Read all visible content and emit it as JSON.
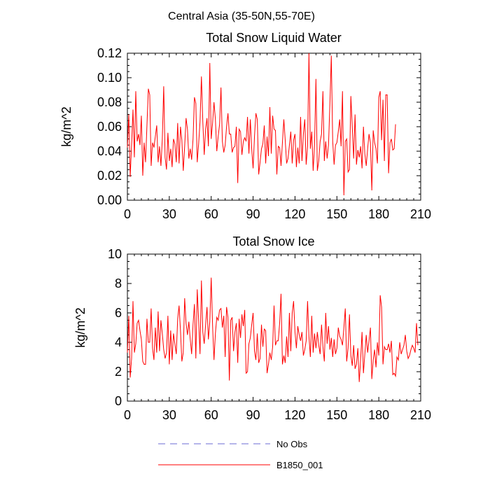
{
  "figure": {
    "suptitle": "Central Asia (35-50N,55-70E)"
  },
  "chart_data": [
    {
      "type": "line",
      "title": "Total Snow Liquid Water",
      "xlabel": "",
      "ylabel": "kg/m^2",
      "xlim": [
        0,
        210
      ],
      "ylim": [
        0,
        0.12
      ],
      "xticks": [
        0,
        30,
        60,
        90,
        120,
        150,
        180,
        210
      ],
      "yticks": [
        0,
        0.02,
        0.04,
        0.06,
        0.08,
        0.1,
        0.12
      ],
      "ytick_labels": [
        "0.00",
        "0.02",
        "0.04",
        "0.06",
        "0.08",
        "0.10",
        "0.12"
      ],
      "grid": false,
      "series": [
        {
          "name": "B1850_001",
          "color": "#ff0000",
          "x_start": 0,
          "x_step": 1,
          "values": [
            0.043,
            0.07,
            0.019,
            0.045,
            0.074,
            0.035,
            0.089,
            0.048,
            0.054,
            0.045,
            0.069,
            0.02,
            0.047,
            0.031,
            0.061,
            0.091,
            0.086,
            0.028,
            0.047,
            0.043,
            0.052,
            0.061,
            0.031,
            0.044,
            0.028,
            0.05,
            0.093,
            0.035,
            0.025,
            0.055,
            0.032,
            0.042,
            0.027,
            0.05,
            0.046,
            0.031,
            0.063,
            0.03,
            0.06,
            0.049,
            0.024,
            0.044,
            0.067,
            0.058,
            0.034,
            0.042,
            0.033,
            0.05,
            0.084,
            0.079,
            0.031,
            0.046,
            0.064,
            0.101,
            0.064,
            0.037,
            0.058,
            0.067,
            0.044,
            0.112,
            0.05,
            0.063,
            0.08,
            0.066,
            0.04,
            0.052,
            0.062,
            0.092,
            0.048,
            0.039,
            0.045,
            0.06,
            0.071,
            0.054,
            0.054,
            0.039,
            0.043,
            0.044,
            0.06,
            0.014,
            0.058,
            0.056,
            0.037,
            0.048,
            0.051,
            0.048,
            0.068,
            0.038,
            0.066,
            0.042,
            0.026,
            0.052,
            0.071,
            0.066,
            0.021,
            0.031,
            0.042,
            0.046,
            0.061,
            0.03,
            0.052,
            0.036,
            0.076,
            0.038,
            0.069,
            0.058,
            0.057,
            0.021,
            0.044,
            0.043,
            0.028,
            0.047,
            0.066,
            0.049,
            0.03,
            0.034,
            0.045,
            0.056,
            0.03,
            0.049,
            0.054,
            0.027,
            0.043,
            0.03,
            0.068,
            0.032,
            0.054,
            0.066,
            0.029,
            0.044,
            0.12,
            0.042,
            0.056,
            0.024,
            0.045,
            0.099,
            0.024,
            0.032,
            0.048,
            0.054,
            0.089,
            0.032,
            0.048,
            0.034,
            0.045,
            0.079,
            0.118,
            0.048,
            0.029,
            0.045,
            0.047,
            0.056,
            0.066,
            0.044,
            0.089,
            0.004,
            0.048,
            0.05,
            0.023,
            0.025,
            0.085,
            0.06,
            0.034,
            0.07,
            0.029,
            0.041,
            0.035,
            0.044,
            0.026,
            0.06,
            0.038,
            0.028,
            0.042,
            0.054,
            0.047,
            0.008,
            0.057,
            0.047,
            0.042,
            0.03,
            0.084,
            0.089,
            0.049,
            0.082,
            0.032,
            0.086,
            0.086,
            0.022,
            0.047,
            0.05,
            0.041,
            0.042,
            0.062
          ]
        }
      ]
    },
    {
      "type": "line",
      "title": "Total Snow Ice",
      "xlabel": "",
      "ylabel": "kg/m^2",
      "xlim": [
        0,
        210
      ],
      "ylim": [
        0,
        10
      ],
      "xticks": [
        0,
        30,
        60,
        90,
        120,
        150,
        180,
        210
      ],
      "yticks": [
        0,
        2,
        4,
        6,
        8,
        10
      ],
      "ytick_labels": [
        "0",
        "2",
        "4",
        "6",
        "8",
        "10"
      ],
      "grid": false,
      "series": [
        {
          "name": "B1850_001",
          "color": "#ff0000",
          "x_start": 0,
          "x_step": 1,
          "values": [
            3.3,
            5.8,
            1.6,
            2.9,
            6.8,
            3.3,
            3.9,
            5.3,
            5.5,
            4.8,
            4.2,
            2.7,
            2.5,
            2.5,
            5.6,
            4.0,
            4.0,
            6.3,
            3.6,
            2.8,
            5.0,
            3.3,
            6.1,
            3.4,
            5.5,
            4.6,
            3.5,
            2.9,
            3.3,
            5.8,
            2.5,
            4.8,
            2.8,
            4.6,
            3.9,
            3.2,
            5.6,
            6.5,
            4.8,
            2.7,
            3.3,
            7.0,
            5.3,
            4.5,
            5.4,
            4.2,
            3.2,
            5.2,
            6.6,
            2.9,
            7.6,
            5.5,
            3.2,
            8.2,
            4.7,
            3.9,
            5.2,
            6.4,
            4.2,
            5.4,
            8.4,
            5.1,
            2.8,
            4.6,
            5.7,
            5.5,
            6.2,
            6.3,
            5.0,
            5.8,
            3.0,
            6.4,
            5.7,
            1.4,
            5.5,
            5.7,
            3.4,
            4.7,
            5.3,
            2.6,
            5.6,
            4.3,
            5.9,
            5.1,
            6.2,
            1.9,
            2.0,
            3.9,
            4.3,
            5.2,
            6.0,
            3.4,
            2.8,
            4.6,
            2.6,
            2.9,
            5.2,
            3.7,
            4.9,
            4.8,
            1.9,
            2.5,
            3.3,
            2.8,
            3.7,
            6.5,
            3.8,
            4.1,
            4.1,
            5.3,
            7.3,
            2.5,
            3.1,
            2.6,
            4.4,
            3.0,
            6.0,
            3.4,
            6.0,
            6.8,
            4.7,
            3.6,
            5.1,
            4.5,
            4.1,
            4.7,
            3.1,
            3.5,
            4.1,
            6.8,
            4.4,
            3.0,
            5.8,
            3.3,
            4.6,
            3.6,
            4.7,
            3.8,
            3.2,
            5.2,
            3.7,
            2.7,
            6.0,
            3.9,
            5.1,
            3.5,
            4.3,
            3.0,
            4.2,
            3.2,
            3.6,
            5.0,
            4.4,
            4.2,
            3.8,
            5.0,
            6.3,
            2.7,
            3.6,
            5.9,
            3.1,
            2.4,
            3.8,
            2.2,
            2.5,
            3.6,
            1.3,
            2.8,
            4.7,
            1.9,
            3.2,
            4.5,
            3.3,
            4.1,
            5.0,
            1.5,
            2.8,
            3.5,
            2.3,
            4.0,
            3.1,
            7.2,
            6.4,
            2.5,
            3.7,
            3.5,
            3.5,
            3.9,
            3.3,
            4.1,
            1.8,
            1.9,
            1.7,
            3.0,
            2.8,
            4.0,
            3.2,
            3.5,
            3.8,
            4.5,
            3.4,
            2.9,
            3.1,
            3.5,
            3.8,
            3.6,
            3.3,
            5.3,
            3.8
          ]
        }
      ]
    }
  ],
  "legend": {
    "items": [
      {
        "label": "No Obs",
        "color": "#6b6bd6",
        "style": "dashed"
      },
      {
        "label": "B1850_001",
        "color": "#ff0000",
        "style": "solid"
      }
    ]
  }
}
